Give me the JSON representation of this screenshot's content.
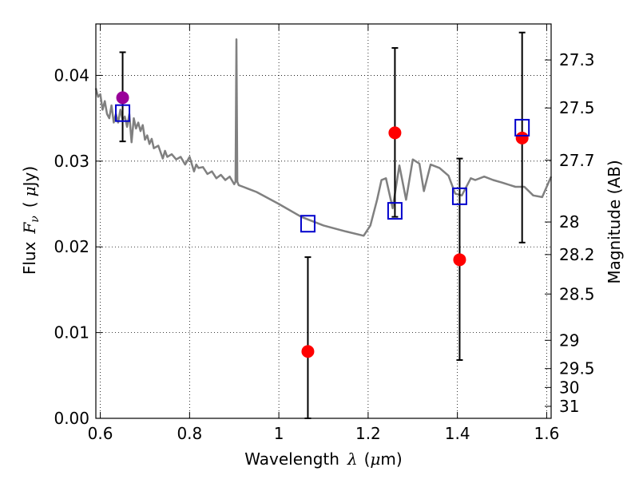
{
  "chart_data": {
    "type": "scatter",
    "xlabel": "Wavelength",
    "xlabel_symbol": "λ",
    "xlabel_unit_open": "(",
    "xlabel_unit_mu": "μ",
    "xlabel_unit_rest": "m)",
    "ylabel": "Flux",
    "ylabel_symbol": "F",
    "ylabel_subscript": "ν",
    "ylabel_unit_open": "(",
    "ylabel_unit_mu": "μ",
    "ylabel_unit_rest": "Jy)",
    "y2label": "Magnitude (AB)",
    "xlim": [
      0.59,
      1.61
    ],
    "ylim": [
      0.0,
      0.046
    ],
    "grid": true,
    "x_ticks": [
      0.6,
      0.8,
      1.0,
      1.2,
      1.4,
      1.6
    ],
    "x_tick_labels": [
      "0.6",
      "0.8",
      "1",
      "1.2",
      "1.4",
      "1.6"
    ],
    "y_ticks": [
      0.0,
      0.01,
      0.02,
      0.03,
      0.04
    ],
    "y_tick_labels": [
      "0.00",
      "0.01",
      "0.02",
      "0.03",
      "0.04"
    ],
    "y2_ticks": [
      {
        "label": "27.3",
        "flux": 0.0418
      },
      {
        "label": "27.5",
        "flux": 0.0362
      },
      {
        "label": "27.7",
        "flux": 0.0301
      },
      {
        "label": "28",
        "flux": 0.0229
      },
      {
        "label": "28.2",
        "flux": 0.0191
      },
      {
        "label": "28.5",
        "flux": 0.0145
      },
      {
        "label": "29",
        "flux": 0.0091
      },
      {
        "label": "29.5",
        "flux": 0.0058
      },
      {
        "label": "30",
        "flux": 0.0036
      },
      {
        "label": "31",
        "flux": 0.0014
      }
    ],
    "series": [
      {
        "kind": "line",
        "color": "#808080",
        "x": [
          0.59,
          0.595,
          0.6,
          0.605,
          0.61,
          0.615,
          0.62,
          0.625,
          0.63,
          0.635,
          0.64,
          0.645,
          0.65,
          0.655,
          0.66,
          0.665,
          0.67,
          0.675,
          0.68,
          0.685,
          0.69,
          0.695,
          0.7,
          0.705,
          0.71,
          0.715,
          0.72,
          0.73,
          0.74,
          0.745,
          0.75,
          0.76,
          0.77,
          0.78,
          0.79,
          0.8,
          0.81,
          0.815,
          0.82,
          0.83,
          0.84,
          0.85,
          0.86,
          0.87,
          0.88,
          0.89,
          0.9,
          0.903,
          0.905,
          0.907,
          0.91,
          0.92,
          0.93,
          0.95,
          1.0,
          1.05,
          1.1,
          1.15,
          1.19,
          1.205,
          1.22,
          1.23,
          1.24,
          1.255,
          1.27,
          1.285,
          1.3,
          1.315,
          1.325,
          1.34,
          1.36,
          1.38,
          1.395,
          1.41,
          1.43,
          1.44,
          1.46,
          1.48,
          1.5,
          1.53,
          1.55,
          1.57,
          1.59,
          1.61
        ],
        "y": [
          0.0385,
          0.0375,
          0.0378,
          0.036,
          0.037,
          0.0355,
          0.035,
          0.0365,
          0.0345,
          0.0355,
          0.0345,
          0.036,
          0.0348,
          0.0352,
          0.034,
          0.0355,
          0.0322,
          0.035,
          0.0338,
          0.0345,
          0.0335,
          0.0342,
          0.0325,
          0.033,
          0.032,
          0.0326,
          0.0315,
          0.0318,
          0.0303,
          0.0312,
          0.0305,
          0.0308,
          0.0302,
          0.0305,
          0.0296,
          0.0305,
          0.0288,
          0.0296,
          0.0292,
          0.0293,
          0.0285,
          0.0288,
          0.028,
          0.0284,
          0.0278,
          0.0282,
          0.0273,
          0.0276,
          0.0442,
          0.0276,
          0.0272,
          0.027,
          0.0268,
          0.0264,
          0.025,
          0.0235,
          0.0225,
          0.0218,
          0.0213,
          0.0225,
          0.0255,
          0.0278,
          0.028,
          0.0245,
          0.0295,
          0.0255,
          0.0302,
          0.0297,
          0.0265,
          0.0296,
          0.0292,
          0.0283,
          0.0262,
          0.026,
          0.028,
          0.0278,
          0.0282,
          0.0278,
          0.0275,
          0.027,
          0.027,
          0.026,
          0.0258,
          0.0282
        ]
      },
      {
        "kind": "points",
        "marker": "filled-circle",
        "color": "#ff0000",
        "x": [
          1.065,
          1.26,
          1.405,
          1.545
        ],
        "y": [
          0.0078,
          0.0333,
          0.0185,
          0.0327
        ],
        "yerr_low": [
          0.0,
          0.0235,
          0.0068,
          0.0205
        ],
        "yerr_high": [
          0.0188,
          0.0432,
          0.0303,
          0.045
        ]
      },
      {
        "kind": "points",
        "marker": "filled-circle",
        "color": "#990099",
        "x": [
          0.65
        ],
        "y": [
          0.0374
        ],
        "yerr_low": [
          0.0323
        ],
        "yerr_high": [
          0.0427
        ]
      },
      {
        "kind": "points",
        "marker": "open-square",
        "color": "#0000cc",
        "x": [
          0.65,
          1.065,
          1.26,
          1.405,
          1.545
        ],
        "y": [
          0.0356,
          0.0227,
          0.0242,
          0.0259,
          0.0339
        ]
      }
    ]
  }
}
